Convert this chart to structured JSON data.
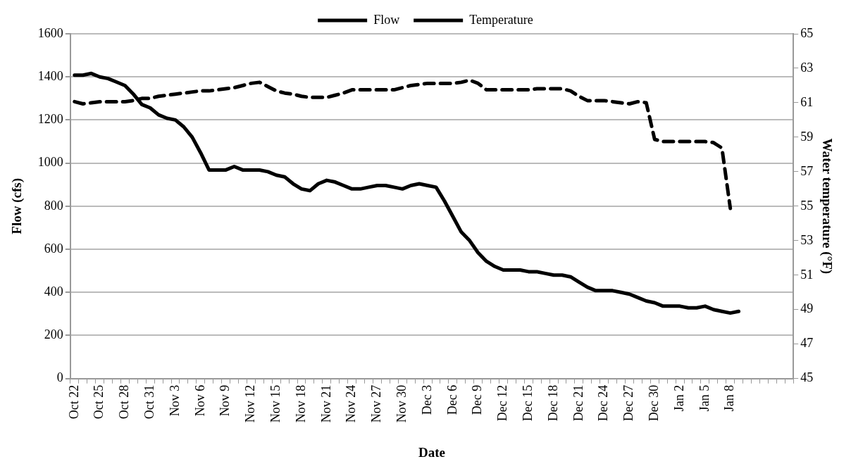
{
  "chart_data": {
    "type": "line",
    "xlabel": "Date",
    "ylabel": "Flow (cfs)",
    "y2label": "Water temperature (°F)",
    "categories": [
      "Oct 22",
      null,
      null,
      "Oct 25",
      null,
      null,
      "Oct 28",
      null,
      null,
      "Oct 31",
      null,
      null,
      "Nov 3",
      null,
      null,
      "Nov 6",
      null,
      null,
      "Nov 9",
      null,
      null,
      "Nov 12",
      null,
      null,
      "Nov 15",
      null,
      null,
      "Nov 18",
      null,
      null,
      "Nov 21",
      null,
      null,
      "Nov 24",
      null,
      null,
      "Nov 27",
      null,
      null,
      "Nov 30",
      null,
      null,
      "Dec 3",
      null,
      null,
      "Dec 6",
      null,
      null,
      "Dec 9",
      null,
      null,
      "Dec 12",
      null,
      null,
      "Dec 15",
      null,
      null,
      "Dec 18",
      null,
      null,
      "Dec 21",
      null,
      null,
      "Dec 24",
      null,
      null,
      "Dec 27",
      null,
      null,
      "Dec 30",
      null,
      null,
      "Jan 2",
      null,
      null,
      "Jan 5",
      null,
      null,
      "Jan 8",
      null,
      null,
      null,
      null,
      null,
      null,
      null
    ],
    "series": [
      {
        "name": "Flow",
        "color": "#000000",
        "line_style": "dashed",
        "values": [
          1285,
          1275,
          1280,
          1285,
          1285,
          1285,
          1285,
          1290,
          1300,
          1300,
          1310,
          1315,
          1320,
          1325,
          1330,
          1335,
          1335,
          1340,
          1345,
          1350,
          1360,
          1370,
          1375,
          1355,
          1335,
          1325,
          1320,
          1310,
          1305,
          1305,
          1305,
          1315,
          1325,
          1340,
          1340,
          1340,
          1340,
          1340,
          1340,
          1350,
          1360,
          1365,
          1370,
          1370,
          1370,
          1370,
          1375,
          1385,
          1370,
          1340,
          1340,
          1340,
          1340,
          1340,
          1340,
          1345,
          1345,
          1345,
          1345,
          1335,
          1310,
          1290,
          1290,
          1290,
          1285,
          1280,
          1275,
          1285,
          1280,
          1110,
          1100,
          1100,
          1100,
          1100,
          1100,
          1100,
          1095,
          1070,
          790,
          null,
          null,
          null,
          null,
          null,
          null,
          null
        ]
      },
      {
        "name": "Temperature",
        "color": "#000000",
        "line_style": "solid",
        "axis": "y2",
        "values": [
          62.6,
          62.6,
          62.7,
          62.5,
          62.4,
          62.2,
          62.0,
          61.5,
          60.9,
          60.7,
          60.3,
          60.1,
          60.0,
          59.6,
          59.0,
          58.1,
          57.1,
          57.1,
          57.1,
          57.3,
          57.1,
          57.1,
          57.1,
          57.0,
          56.8,
          56.7,
          56.3,
          56.0,
          55.9,
          56.3,
          56.5,
          56.4,
          56.2,
          56.0,
          56.0,
          56.1,
          56.2,
          56.2,
          56.1,
          56.0,
          56.2,
          56.3,
          56.2,
          56.1,
          55.3,
          54.4,
          53.5,
          53.0,
          52.3,
          51.8,
          51.5,
          51.3,
          51.3,
          51.3,
          51.2,
          51.2,
          51.1,
          51.0,
          51.0,
          50.9,
          50.6,
          50.3,
          50.1,
          50.1,
          50.1,
          50.0,
          49.9,
          49.7,
          49.5,
          49.4,
          49.2,
          49.2,
          49.2,
          49.1,
          49.1,
          49.2,
          49.0,
          48.9,
          48.8,
          48.9,
          null,
          null,
          null,
          null,
          null,
          null
        ]
      }
    ],
    "ylim": [
      0,
      1600
    ],
    "yticks": [
      0,
      200,
      400,
      600,
      800,
      1000,
      1200,
      1400,
      1600
    ],
    "y2lim": [
      45,
      65
    ],
    "y2ticks": [
      45,
      47,
      49,
      51,
      53,
      55,
      57,
      59,
      61,
      63,
      65
    ],
    "grid": "y",
    "legend": "top",
    "marker": "none"
  }
}
